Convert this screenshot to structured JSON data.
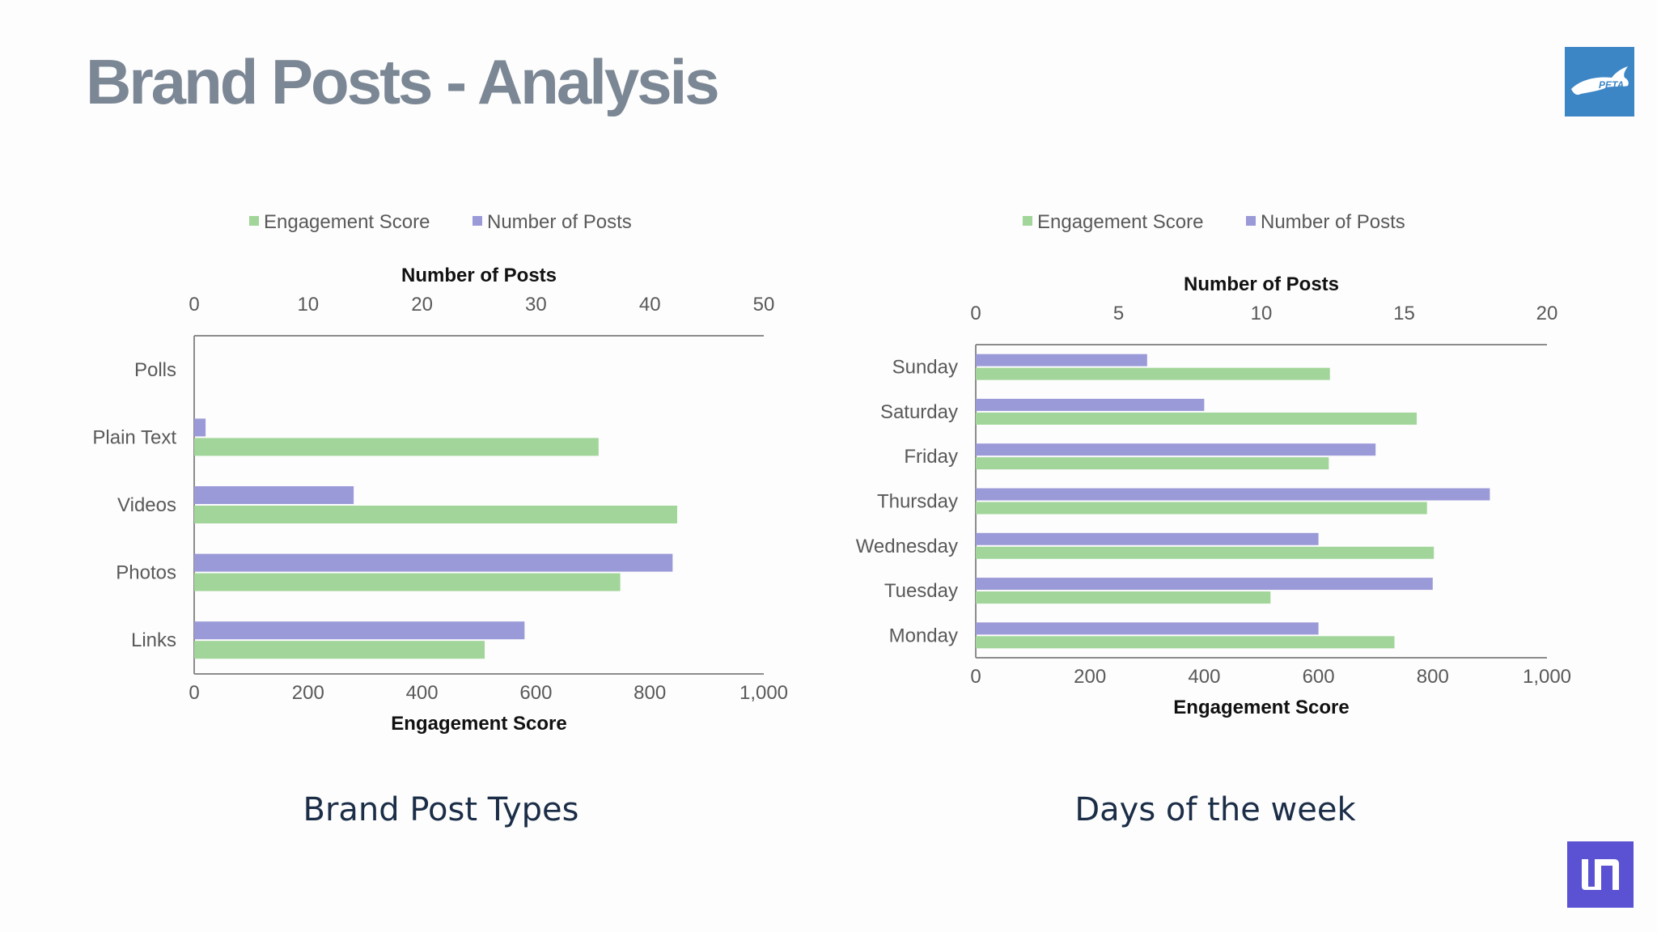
{
  "slide": {
    "title": "Brand Posts - Analysis",
    "logo_right_top_text": "PETA"
  },
  "colors": {
    "engagement": "#a1d599",
    "posts": "#9b9ad8",
    "axis": "#8c8c8c",
    "title": "#7b8794",
    "caption": "#1b2d47"
  },
  "chart_data": [
    {
      "type": "bar",
      "orientation": "horizontal",
      "caption": "Brand Post Types",
      "categories": [
        "Polls",
        "Plain Text",
        "Videos",
        "Photos",
        "Links"
      ],
      "series": [
        {
          "name": "Engagement Score",
          "axis": "bottom",
          "values": [
            0,
            710,
            848,
            748,
            510
          ]
        },
        {
          "name": "Number of Posts",
          "axis": "top",
          "values": [
            0,
            1,
            14,
            42,
            29
          ]
        }
      ],
      "xlabel_bottom": "Engagement Score",
      "xlabel_top": "Number of Posts",
      "xlim_bottom": [
        0,
        1000
      ],
      "xlim_top": [
        0,
        50
      ],
      "ticks_bottom": [
        "0",
        "200",
        "400",
        "600",
        "800",
        "1,000"
      ],
      "ticks_top": [
        "0",
        "10",
        "20",
        "30",
        "40",
        "50"
      ],
      "legend": [
        "Engagement Score",
        "Number of Posts"
      ],
      "legend_position": "top",
      "grid": false
    },
    {
      "type": "bar",
      "orientation": "horizontal",
      "caption": "Days of the week",
      "categories": [
        "Sunday",
        "Saturday",
        "Friday",
        "Thursday",
        "Wednesday",
        "Tuesday",
        "Monday"
      ],
      "series": [
        {
          "name": "Engagement Score",
          "axis": "bottom",
          "values": [
            620,
            772,
            618,
            790,
            802,
            516,
            733
          ]
        },
        {
          "name": "Number of Posts",
          "axis": "top",
          "values": [
            6,
            8,
            14,
            18,
            12,
            16,
            12
          ]
        }
      ],
      "xlabel_bottom": "Engagement Score",
      "xlabel_top": "Number of Posts",
      "xlim_bottom": [
        0,
        1000
      ],
      "xlim_top": [
        0,
        20
      ],
      "ticks_bottom": [
        "0",
        "200",
        "400",
        "600",
        "800",
        "1,000"
      ],
      "ticks_top": [
        "0",
        "5",
        "10",
        "15",
        "20"
      ],
      "legend": [
        "Engagement Score",
        "Number of Posts"
      ],
      "legend_position": "top",
      "grid": false
    }
  ]
}
